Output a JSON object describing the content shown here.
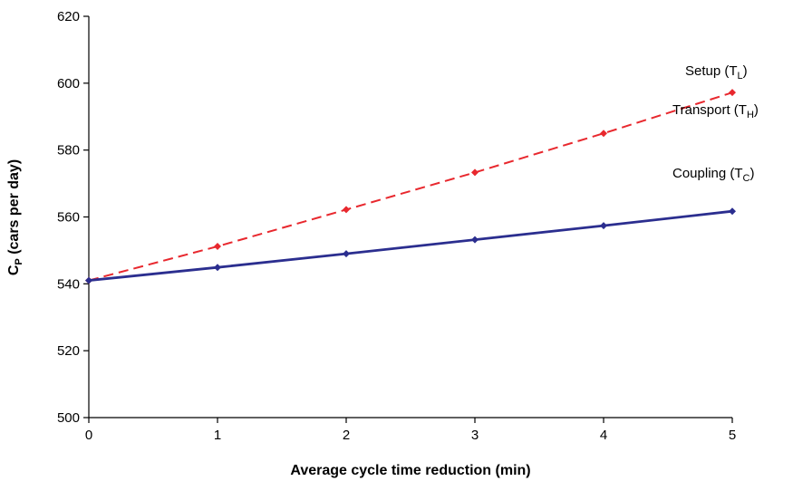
{
  "chart_data": {
    "type": "line",
    "xlabel": "Average cycle time reduction (min)",
    "ylabel": {
      "main": "C",
      "sub": "P",
      "rest": " (cars per day)"
    },
    "xlim": [
      0,
      5
    ],
    "ylim": [
      500,
      620
    ],
    "x_ticks": [
      0,
      1,
      2,
      3,
      4,
      5
    ],
    "y_ticks": [
      500,
      520,
      540,
      560,
      580,
      600,
      620
    ],
    "grid": false,
    "x": [
      0,
      1,
      2,
      3,
      4,
      5
    ],
    "series": [
      {
        "values": [
          541,
          551.2,
          562.2,
          573.3,
          585,
          597.2
        ],
        "color": "#e8282e",
        "dashed": true,
        "labels": [
          {
            "text": "Setup (T",
            "sub": "L",
            "close": ")"
          },
          {
            "text": "Transport (T",
            "sub": "H",
            "close": ")"
          }
        ]
      },
      {
        "values": [
          541,
          544.9,
          549,
          553.2,
          557.4,
          561.7
        ],
        "color": "#2b2e8f",
        "dashed": false,
        "labels": [
          {
            "text": "Coupling (T",
            "sub": "C",
            "close": ")"
          }
        ]
      }
    ]
  }
}
